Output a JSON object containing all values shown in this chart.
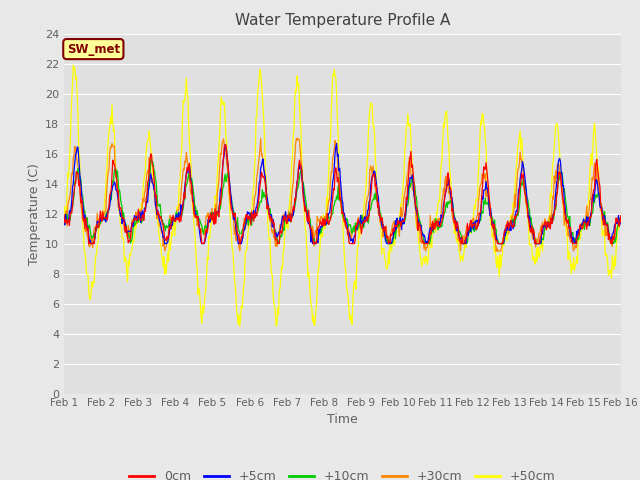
{
  "title": "Water Temperature Profile A",
  "xlabel": "Time",
  "ylabel": "Temperature (C)",
  "ylim": [
    0,
    24
  ],
  "yticks": [
    0,
    2,
    4,
    6,
    8,
    10,
    12,
    14,
    16,
    18,
    20,
    22,
    24
  ],
  "xtick_labels": [
    "Feb 1",
    "Feb 2",
    "Feb 3",
    "Feb 4",
    "Feb 5",
    "Feb 6",
    "Feb 7",
    "Feb 8",
    "Feb 9",
    "Feb 10",
    "Feb 11",
    "Feb 12",
    "Feb 13",
    "Feb 14",
    "Feb 15",
    "Feb 16"
  ],
  "annotation_text": "SW_met",
  "annotation_bg": "#ffff99",
  "annotation_border": "#800000",
  "annotation_text_color": "#800000",
  "series_colors": {
    "0cm": "#ff0000",
    "+5cm": "#0000ff",
    "+10cm": "#00cc00",
    "+30cm": "#ff8800",
    "+50cm": "#ffff00"
  },
  "legend_labels": [
    "0cm",
    "+5cm",
    "+10cm",
    "+30cm",
    "+50cm"
  ],
  "fig_bg": "#e8e8e8",
  "plot_bg": "#e0e0e0",
  "title_color": "#404040",
  "label_color": "#606060",
  "grid_color": "#ffffff",
  "n_points": 720
}
